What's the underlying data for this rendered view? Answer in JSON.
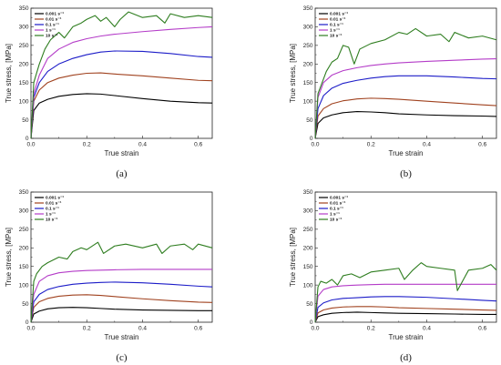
{
  "chart_data": [
    {
      "type": "line",
      "panel_label": "(a)",
      "xlabel": "True strain",
      "ylabel": "True stress, [MPa]",
      "xlim": [
        0,
        0.65
      ],
      "ylim": [
        0,
        350
      ],
      "xticks": [
        "0.0",
        "0.2",
        "0.4",
        "0.6"
      ],
      "yticks": [
        "0",
        "50",
        "100",
        "150",
        "200",
        "250",
        "300",
        "350"
      ],
      "legend_position": "top-left",
      "series": [
        {
          "name": "0.001 s⁻¹",
          "color": "#000000",
          "x": [
            0,
            0.01,
            0.03,
            0.06,
            0.1,
            0.15,
            0.2,
            0.25,
            0.3,
            0.4,
            0.5,
            0.6,
            0.65
          ],
          "y": [
            0,
            75,
            95,
            105,
            113,
            118,
            120,
            119,
            115,
            107,
            100,
            96,
            95
          ]
        },
        {
          "name": "0.01 s⁻¹",
          "color": "#a0421f",
          "x": [
            0,
            0.01,
            0.03,
            0.06,
            0.1,
            0.15,
            0.2,
            0.25,
            0.3,
            0.4,
            0.5,
            0.6,
            0.65
          ],
          "y": [
            0,
            100,
            130,
            150,
            162,
            170,
            175,
            176,
            173,
            168,
            162,
            156,
            155
          ]
        },
        {
          "name": "0.1 s⁻¹",
          "color": "#1c1cc8",
          "x": [
            0,
            0.01,
            0.03,
            0.06,
            0.1,
            0.15,
            0.2,
            0.25,
            0.3,
            0.4,
            0.5,
            0.6,
            0.65
          ],
          "y": [
            0,
            110,
            150,
            180,
            200,
            215,
            225,
            232,
            235,
            234,
            228,
            220,
            218
          ]
        },
        {
          "name": "1 s⁻¹",
          "color": "#b43cc8",
          "x": [
            0,
            0.01,
            0.03,
            0.06,
            0.1,
            0.15,
            0.2,
            0.25,
            0.3,
            0.4,
            0.5,
            0.6,
            0.65
          ],
          "y": [
            0,
            120,
            170,
            215,
            240,
            258,
            268,
            275,
            280,
            287,
            293,
            298,
            300
          ]
        },
        {
          "name": "10 s⁻¹",
          "color": "#2e7d1f",
          "x": [
            0,
            0.01,
            0.03,
            0.05,
            0.07,
            0.1,
            0.12,
            0.15,
            0.18,
            0.2,
            0.23,
            0.25,
            0.27,
            0.3,
            0.32,
            0.35,
            0.4,
            0.45,
            0.48,
            0.5,
            0.55,
            0.6,
            0.65
          ],
          "y": [
            0,
            150,
            200,
            240,
            265,
            285,
            270,
            300,
            310,
            320,
            330,
            315,
            325,
            300,
            320,
            340,
            325,
            330,
            310,
            335,
            325,
            330,
            325
          ]
        }
      ]
    },
    {
      "type": "line",
      "panel_label": "(b)",
      "xlabel": "True strain",
      "ylabel": "True stress, [MPa]",
      "xlim": [
        0,
        0.65
      ],
      "ylim": [
        0,
        350
      ],
      "xticks": [
        "0.0",
        "0.2",
        "0.4",
        "0.6"
      ],
      "yticks": [
        "0",
        "50",
        "100",
        "150",
        "200",
        "250",
        "300",
        "350"
      ],
      "legend_position": "top-left",
      "series": [
        {
          "name": "0.001 s⁻¹",
          "color": "#000000",
          "x": [
            0,
            0.01,
            0.03,
            0.06,
            0.1,
            0.15,
            0.2,
            0.25,
            0.3,
            0.4,
            0.5,
            0.6,
            0.65
          ],
          "y": [
            0,
            40,
            55,
            63,
            69,
            72,
            71,
            69,
            66,
            63,
            61,
            60,
            59
          ]
        },
        {
          "name": "0.01 s⁻¹",
          "color": "#a0421f",
          "x": [
            0,
            0.01,
            0.03,
            0.06,
            0.1,
            0.15,
            0.2,
            0.25,
            0.3,
            0.4,
            0.5,
            0.6,
            0.65
          ],
          "y": [
            0,
            60,
            80,
            93,
            101,
            106,
            108,
            107,
            105,
            100,
            95,
            90,
            88
          ]
        },
        {
          "name": "0.1 s⁻¹",
          "color": "#1c1cc8",
          "x": [
            0,
            0.01,
            0.03,
            0.06,
            0.1,
            0.15,
            0.2,
            0.25,
            0.3,
            0.4,
            0.5,
            0.6,
            0.65
          ],
          "y": [
            0,
            80,
            115,
            135,
            148,
            156,
            162,
            166,
            168,
            168,
            165,
            161,
            160
          ]
        },
        {
          "name": "1 s⁻¹",
          "color": "#b43cc8",
          "x": [
            0,
            0.01,
            0.03,
            0.06,
            0.1,
            0.15,
            0.2,
            0.25,
            0.3,
            0.4,
            0.5,
            0.6,
            0.65
          ],
          "y": [
            0,
            110,
            150,
            170,
            182,
            190,
            196,
            200,
            203,
            207,
            210,
            213,
            214
          ]
        },
        {
          "name": "10 s⁻¹",
          "color": "#2e7d1f",
          "x": [
            0,
            0.01,
            0.02,
            0.04,
            0.06,
            0.08,
            0.1,
            0.12,
            0.14,
            0.16,
            0.2,
            0.25,
            0.3,
            0.33,
            0.36,
            0.4,
            0.45,
            0.48,
            0.5,
            0.55,
            0.6,
            0.65
          ],
          "y": [
            0,
            120,
            140,
            180,
            205,
            215,
            250,
            245,
            200,
            240,
            255,
            265,
            285,
            280,
            295,
            275,
            280,
            260,
            285,
            270,
            275,
            265
          ]
        }
      ]
    },
    {
      "type": "line",
      "panel_label": "(c)",
      "xlabel": "True strain",
      "ylabel": "True stress, [MPa]",
      "xlim": [
        0,
        0.65
      ],
      "ylim": [
        0,
        350
      ],
      "xticks": [
        "0.0",
        "0.2",
        "0.4",
        "0.6"
      ],
      "yticks": [
        "0",
        "50",
        "100",
        "150",
        "200",
        "250",
        "300",
        "350"
      ],
      "legend_position": "top-left",
      "series": [
        {
          "name": "0.001 s⁻¹",
          "color": "#000000",
          "x": [
            0,
            0.01,
            0.03,
            0.06,
            0.1,
            0.15,
            0.2,
            0.25,
            0.3,
            0.4,
            0.5,
            0.6,
            0.65
          ],
          "y": [
            0,
            22,
            30,
            36,
            39,
            40,
            39,
            37,
            35,
            33,
            32,
            31,
            31
          ]
        },
        {
          "name": "0.01 s⁻¹",
          "color": "#a0421f",
          "x": [
            0,
            0.01,
            0.03,
            0.06,
            0.1,
            0.15,
            0.2,
            0.25,
            0.3,
            0.4,
            0.5,
            0.6,
            0.65
          ],
          "y": [
            0,
            40,
            55,
            64,
            70,
            73,
            74,
            72,
            69,
            63,
            58,
            54,
            53
          ]
        },
        {
          "name": "0.1 s⁻¹",
          "color": "#1c1cc8",
          "x": [
            0,
            0.01,
            0.03,
            0.06,
            0.1,
            0.15,
            0.2,
            0.25,
            0.3,
            0.4,
            0.5,
            0.6,
            0.65
          ],
          "y": [
            0,
            55,
            75,
            88,
            96,
            102,
            105,
            107,
            108,
            106,
            102,
            97,
            95
          ]
        },
        {
          "name": "1 s⁻¹",
          "color": "#b43cc8",
          "x": [
            0,
            0.01,
            0.03,
            0.06,
            0.1,
            0.15,
            0.2,
            0.25,
            0.3,
            0.4,
            0.5,
            0.6,
            0.65
          ],
          "y": [
            0,
            75,
            110,
            125,
            133,
            137,
            139,
            140,
            141,
            142,
            142,
            142,
            142
          ]
        },
        {
          "name": "10 s⁻¹",
          "color": "#2e7d1f",
          "x": [
            0,
            0.01,
            0.02,
            0.04,
            0.06,
            0.1,
            0.13,
            0.15,
            0.18,
            0.2,
            0.24,
            0.26,
            0.3,
            0.34,
            0.4,
            0.45,
            0.47,
            0.5,
            0.55,
            0.58,
            0.6,
            0.65
          ],
          "y": [
            0,
            110,
            130,
            150,
            160,
            175,
            170,
            190,
            200,
            195,
            215,
            185,
            205,
            210,
            200,
            210,
            185,
            205,
            210,
            195,
            210,
            200
          ]
        }
      ]
    },
    {
      "type": "line",
      "panel_label": "(d)",
      "xlabel": "True strain",
      "ylabel": "True stress, [MPa]",
      "xlim": [
        0,
        0.65
      ],
      "ylim": [
        0,
        350
      ],
      "xticks": [
        "0.0",
        "0.2",
        "0.4",
        "0.6"
      ],
      "yticks": [
        "0",
        "50",
        "100",
        "150",
        "200",
        "250",
        "300",
        "350"
      ],
      "legend_position": "top-left",
      "series": [
        {
          "name": "0.001 s⁻¹",
          "color": "#000000",
          "x": [
            0,
            0.01,
            0.03,
            0.06,
            0.1,
            0.15,
            0.2,
            0.25,
            0.3,
            0.4,
            0.5,
            0.6,
            0.65
          ],
          "y": [
            0,
            15,
            20,
            24,
            26,
            27,
            26,
            25,
            24,
            23,
            22,
            21,
            21
          ]
        },
        {
          "name": "0.01 s⁻¹",
          "color": "#a0421f",
          "x": [
            0,
            0.01,
            0.03,
            0.06,
            0.1,
            0.15,
            0.2,
            0.25,
            0.3,
            0.4,
            0.5,
            0.6,
            0.65
          ],
          "y": [
            0,
            25,
            33,
            38,
            41,
            42,
            42,
            41,
            39,
            37,
            35,
            33,
            32
          ]
        },
        {
          "name": "0.1 s⁻¹",
          "color": "#1c1cc8",
          "x": [
            0,
            0.01,
            0.03,
            0.06,
            0.1,
            0.15,
            0.2,
            0.25,
            0.3,
            0.4,
            0.5,
            0.6,
            0.65
          ],
          "y": [
            0,
            40,
            52,
            60,
            64,
            66,
            68,
            69,
            69,
            67,
            63,
            59,
            57
          ]
        },
        {
          "name": "1 s⁻¹",
          "color": "#b43cc8",
          "x": [
            0,
            0.01,
            0.03,
            0.06,
            0.1,
            0.15,
            0.2,
            0.25,
            0.3,
            0.4,
            0.5,
            0.6,
            0.65
          ],
          "y": [
            0,
            70,
            88,
            95,
            98,
            100,
            101,
            102,
            102,
            102,
            102,
            102,
            102
          ]
        },
        {
          "name": "10 s⁻¹",
          "color": "#2e7d1f",
          "x": [
            0,
            0.01,
            0.02,
            0.04,
            0.06,
            0.08,
            0.1,
            0.13,
            0.16,
            0.2,
            0.25,
            0.3,
            0.32,
            0.35,
            0.38,
            0.4,
            0.45,
            0.5,
            0.51,
            0.55,
            0.6,
            0.63,
            0.65
          ],
          "y": [
            0,
            95,
            110,
            105,
            115,
            100,
            125,
            130,
            120,
            135,
            140,
            145,
            115,
            140,
            160,
            150,
            145,
            140,
            85,
            140,
            145,
            155,
            140
          ]
        }
      ]
    }
  ]
}
